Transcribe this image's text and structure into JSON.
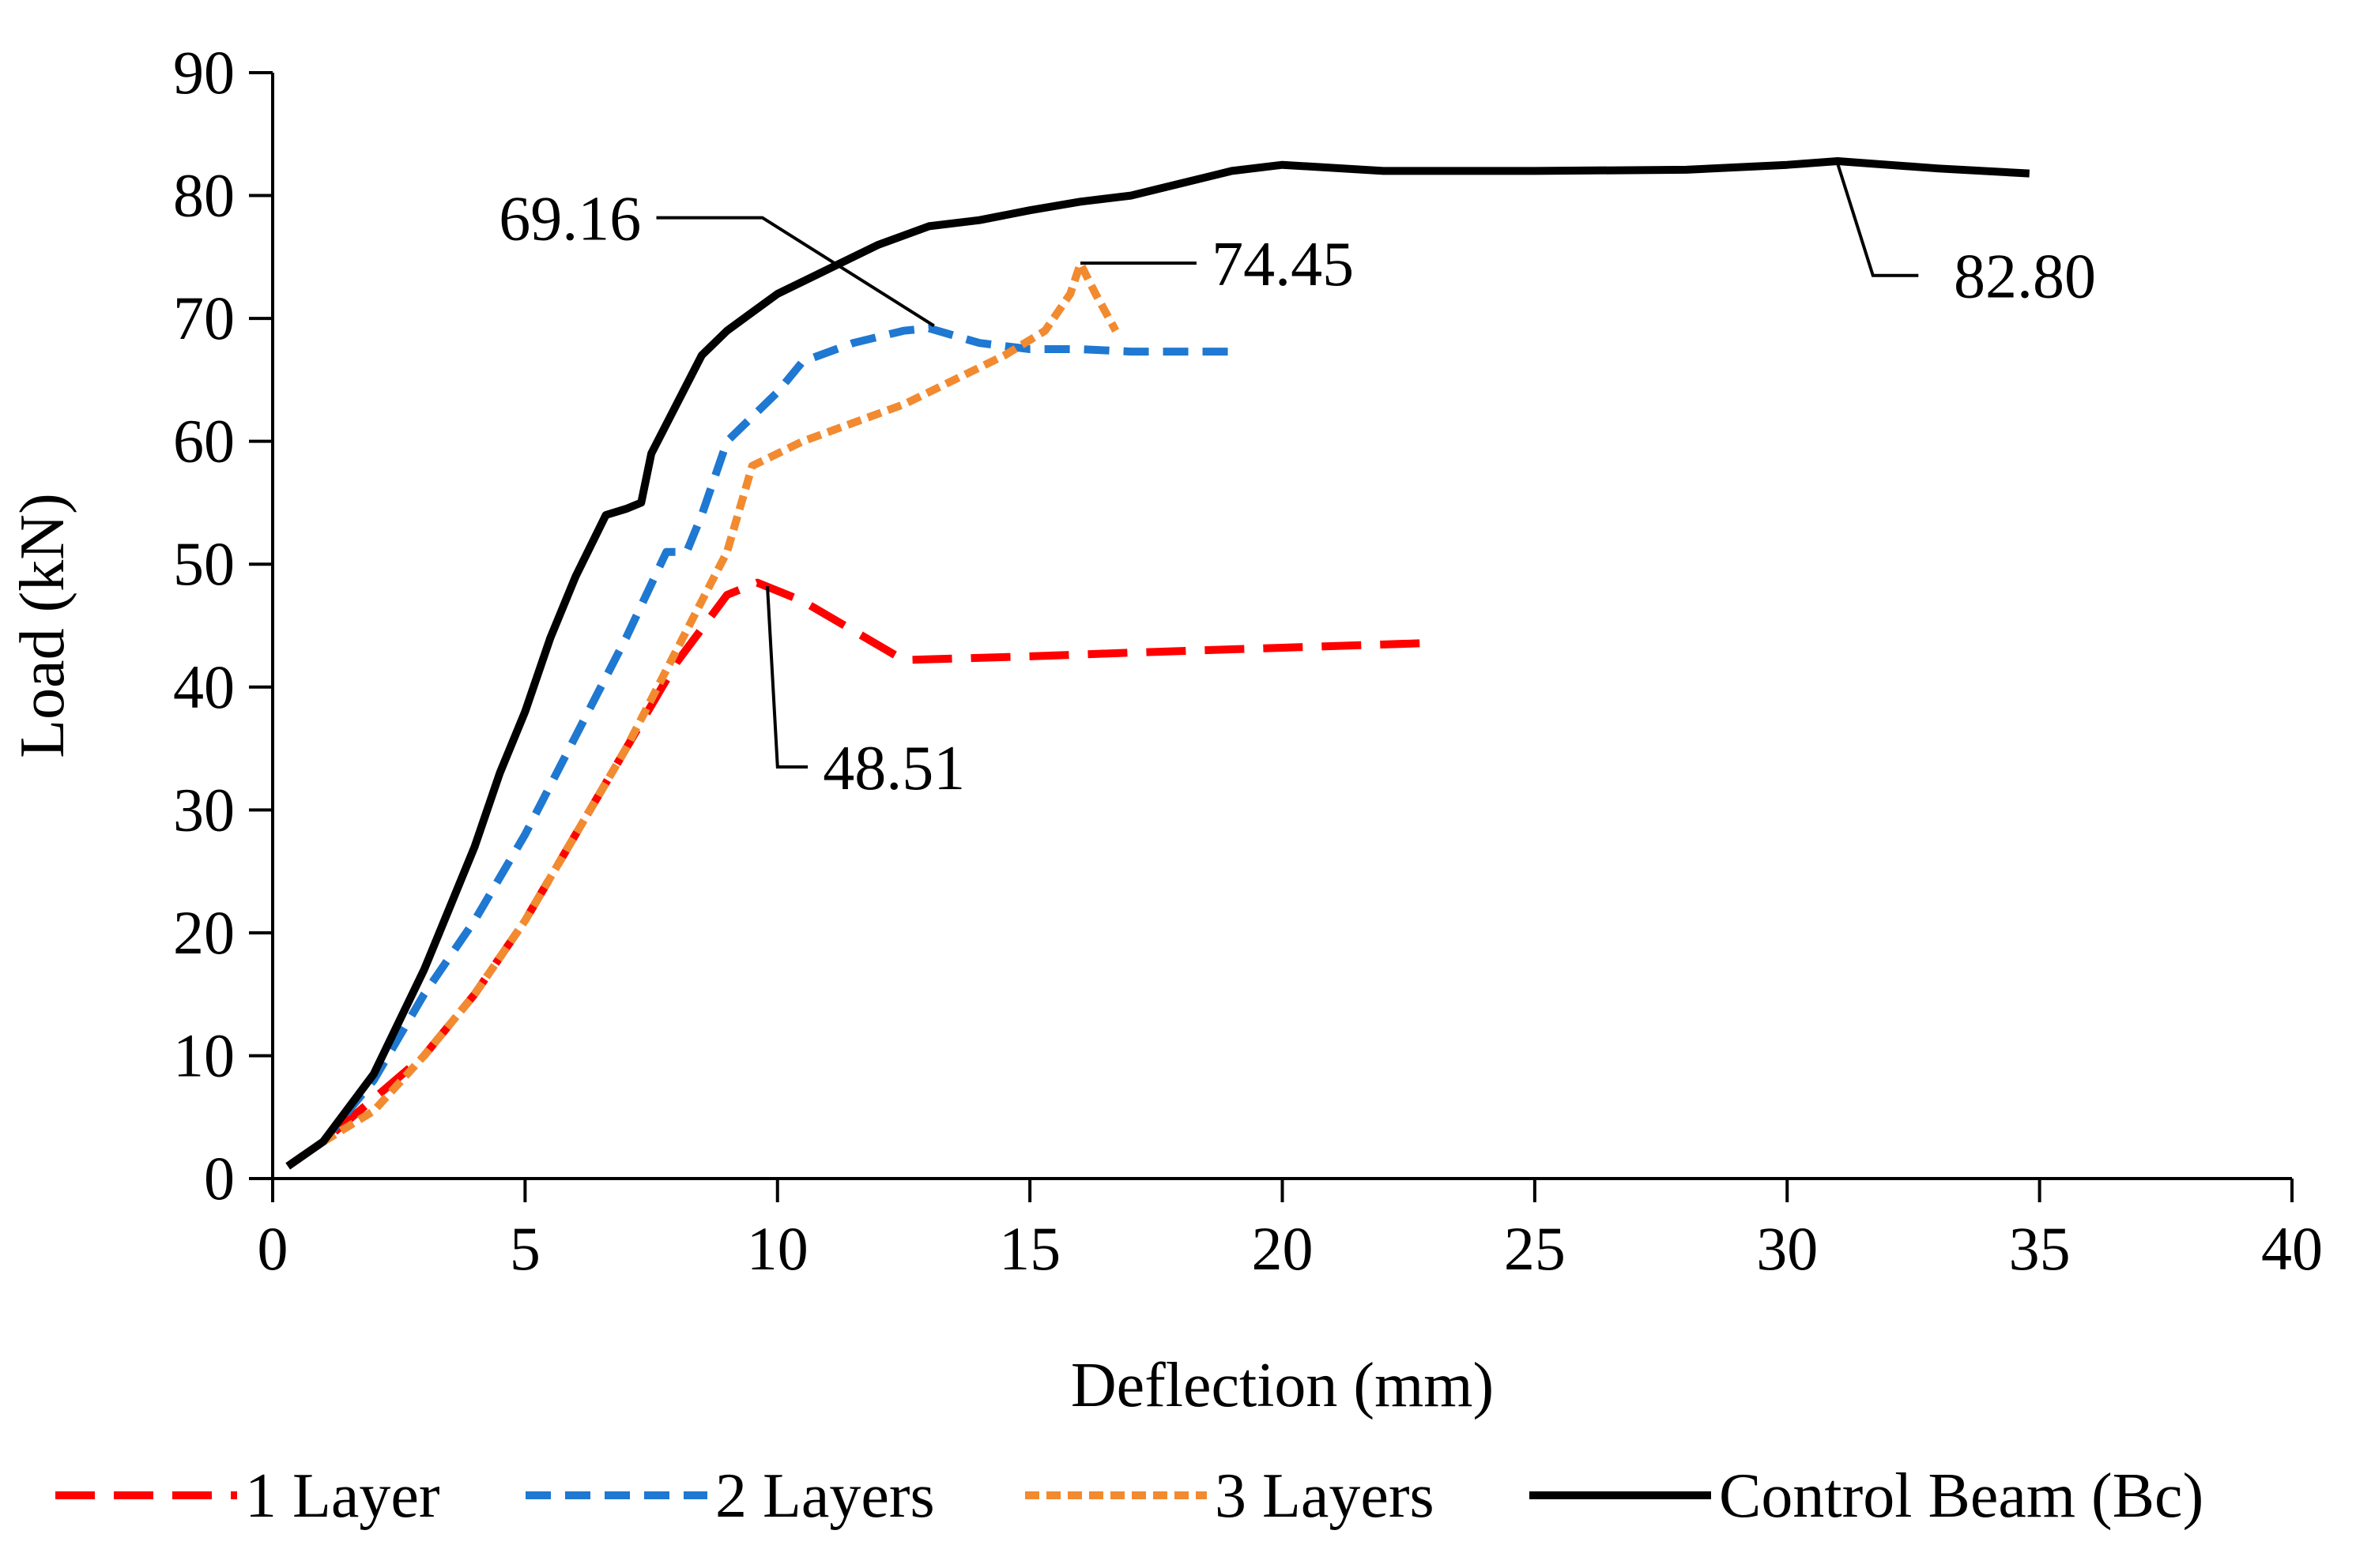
{
  "chart_data": {
    "type": "line",
    "title": "",
    "xlabel": "Deflection (mm)",
    "ylabel": "Load (kN)",
    "xlim": [
      0,
      40
    ],
    "ylim": [
      0,
      90
    ],
    "xticks": [
      0,
      5,
      10,
      15,
      20,
      25,
      30,
      35,
      40
    ],
    "yticks": [
      0,
      10,
      20,
      30,
      40,
      50,
      60,
      70,
      80,
      90
    ],
    "grid": false,
    "legend_position": "bottom",
    "series": [
      {
        "name": "1 Layer",
        "color": "#ff0000",
        "style": "long-dash",
        "points": [
          [
            0.3,
            1
          ],
          [
            1,
            3
          ],
          [
            2,
            6.5
          ],
          [
            3,
            10
          ],
          [
            4,
            15
          ],
          [
            5,
            21
          ],
          [
            6,
            28
          ],
          [
            7,
            35
          ],
          [
            8,
            42
          ],
          [
            9,
            47.5
          ],
          [
            9.6,
            48.5
          ],
          [
            10.5,
            47
          ],
          [
            12.5,
            42.2
          ],
          [
            15,
            42.5
          ],
          [
            17,
            42.8
          ],
          [
            20,
            43.2
          ],
          [
            23,
            43.6
          ]
        ]
      },
      {
        "name": "2 Layers",
        "color": "#1f78d1",
        "style": "dash",
        "points": [
          [
            0.3,
            1
          ],
          [
            1,
            3
          ],
          [
            2,
            8
          ],
          [
            3,
            15
          ],
          [
            4,
            21
          ],
          [
            5,
            28
          ],
          [
            6,
            36
          ],
          [
            7,
            44
          ],
          [
            7.8,
            51
          ],
          [
            8.2,
            51
          ],
          [
            8.5,
            54
          ],
          [
            9,
            60
          ],
          [
            9.5,
            62
          ],
          [
            10,
            64
          ],
          [
            10.5,
            66.5
          ],
          [
            11.5,
            68
          ],
          [
            12.5,
            69
          ],
          [
            13,
            69.2
          ],
          [
            14,
            68
          ],
          [
            15,
            67.5
          ],
          [
            16,
            67.5
          ],
          [
            17,
            67.3
          ],
          [
            18,
            67.3
          ],
          [
            19,
            67.3
          ]
        ]
      },
      {
        "name": "3 Layers",
        "color": "#f28a30",
        "style": "short-dash",
        "points": [
          [
            0.3,
            1
          ],
          [
            1,
            3
          ],
          [
            2,
            5.5
          ],
          [
            3,
            10
          ],
          [
            4,
            15
          ],
          [
            5,
            21
          ],
          [
            6,
            28
          ],
          [
            7,
            35
          ],
          [
            8,
            43
          ],
          [
            8.5,
            47
          ],
          [
            9,
            51
          ],
          [
            9.5,
            58
          ],
          [
            10.5,
            60
          ],
          [
            11.5,
            61.5
          ],
          [
            12.5,
            63
          ],
          [
            13.5,
            65
          ],
          [
            14.5,
            67
          ],
          [
            15.3,
            69
          ],
          [
            15.8,
            72
          ],
          [
            16,
            74.45
          ],
          [
            16.3,
            72
          ],
          [
            16.7,
            69
          ]
        ]
      },
      {
        "name": "Control Beam (Bc)",
        "color": "#000000",
        "style": "solid",
        "points": [
          [
            0.3,
            1
          ],
          [
            1,
            3
          ],
          [
            2,
            8.5
          ],
          [
            3,
            17
          ],
          [
            3.5,
            22
          ],
          [
            4,
            27
          ],
          [
            4.5,
            33
          ],
          [
            5,
            38
          ],
          [
            5.5,
            44
          ],
          [
            6,
            49
          ],
          [
            6.6,
            54
          ],
          [
            7,
            54.5
          ],
          [
            7.3,
            55
          ],
          [
            7.5,
            59
          ],
          [
            8,
            63
          ],
          [
            8.5,
            67
          ],
          [
            9,
            69
          ],
          [
            9.5,
            70.5
          ],
          [
            10,
            72
          ],
          [
            11,
            74
          ],
          [
            12,
            76
          ],
          [
            13,
            77.5
          ],
          [
            14,
            78
          ],
          [
            15,
            78.8
          ],
          [
            16,
            79.5
          ],
          [
            17,
            80
          ],
          [
            18,
            81
          ],
          [
            19,
            82
          ],
          [
            20,
            82.5
          ],
          [
            22,
            82
          ],
          [
            25,
            82
          ],
          [
            28,
            82.1
          ],
          [
            30,
            82.5
          ],
          [
            31,
            82.8
          ],
          [
            33,
            82.2
          ],
          [
            34.8,
            81.8
          ]
        ]
      }
    ],
    "annotations": [
      {
        "text": "69.16"
      },
      {
        "text": "74.45"
      },
      {
        "text": "82.80"
      },
      {
        "text": "48.51"
      }
    ]
  }
}
